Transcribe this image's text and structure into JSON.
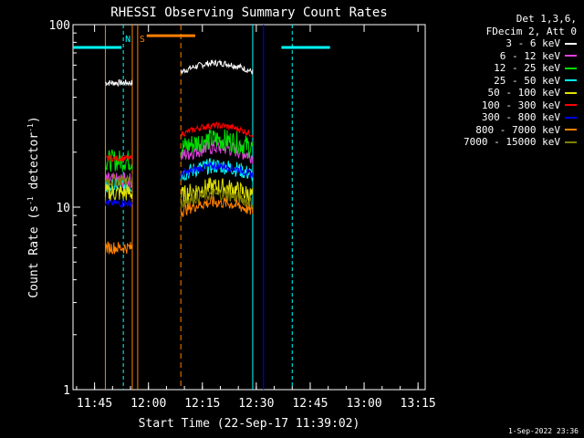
{
  "chart_data": {
    "type": "line",
    "title": "RHESSI Observing Summary Count Rates",
    "xlabel": "Start Time (22-Sep-17 11:39:02)",
    "ylabel": "Count Rate (s",
    "ylabel_sup": "-1",
    "ylabel_tail": " detector",
    "ylabel_sup2": "-1",
    "ylabel_end": ")",
    "y_scale": "log",
    "ylim": [
      1,
      100
    ],
    "xlim_minutes": [
      0,
      98
    ],
    "x_tick_labels": [
      "11:45",
      "12:00",
      "12:15",
      "12:30",
      "12:45",
      "13:00",
      "13:15"
    ],
    "x_tick_minutes": [
      6,
      21,
      36,
      51,
      66,
      81,
      96
    ],
    "y_tick_labels": [
      "1",
      "10",
      "100"
    ],
    "y_tick_values": [
      1,
      10,
      100
    ],
    "legend_header": [
      "Det 1,3,6,",
      "FDecim 2, Att 0"
    ],
    "series": [
      {
        "name": "3 - 6 keV",
        "color": "#ffffff",
        "seg1": 48,
        "seg2": 55,
        "noise": 0.04
      },
      {
        "name": "6 - 12 keV",
        "color": "#e040e0",
        "seg1": 14,
        "seg2": 19,
        "noise": 0.1
      },
      {
        "name": "12 - 25 keV",
        "color": "#00e000",
        "seg1": 18,
        "seg2": 21,
        "noise": 0.14
      },
      {
        "name": "25 - 50 keV",
        "color": "#00ffff",
        "seg1": 13,
        "seg2": 15,
        "noise": 0.1
      },
      {
        "name": "50 - 100 keV",
        "color": "#e0e000",
        "seg1": 12,
        "seg2": 11.5,
        "noise": 0.12
      },
      {
        "name": "100 - 300 keV",
        "color": "#ff0000",
        "seg1": 18.5,
        "seg2": 25,
        "noise": 0.04
      },
      {
        "name": "300 - 800 keV",
        "color": "#0000ff",
        "seg1": 10.5,
        "seg2": 15,
        "noise": 0.05
      },
      {
        "name": "800 - 7000 keV",
        "color": "#ff8000",
        "seg1": 6,
        "seg2": 9.5,
        "noise": 0.08
      },
      {
        "name": "7000 - 15000 keV",
        "color": "#808000",
        "seg1": 14,
        "seg2": 10.5,
        "noise": 0.08
      }
    ],
    "segments_minutes": [
      [
        9,
        16.5
      ],
      [
        30,
        50
      ]
    ],
    "annotations": [
      {
        "text": "N",
        "color": "#00ffff",
        "minute": 14
      },
      {
        "text": "S",
        "color": "#ff8000",
        "minute": 18
      }
    ],
    "night_bars": [
      {
        "color": "#00ffff",
        "from": 0,
        "to": 13.5,
        "y": 75
      },
      {
        "color": "#ff8000",
        "from": 20.5,
        "to": 34,
        "y": 87
      },
      {
        "color": "#00ffff",
        "from": 58,
        "to": 71.5,
        "y": 75
      }
    ]
  },
  "timestamp": "1-Sep-2022 23:36",
  "colors": {
    "background": "#000000",
    "axes": "#ffffff"
  }
}
